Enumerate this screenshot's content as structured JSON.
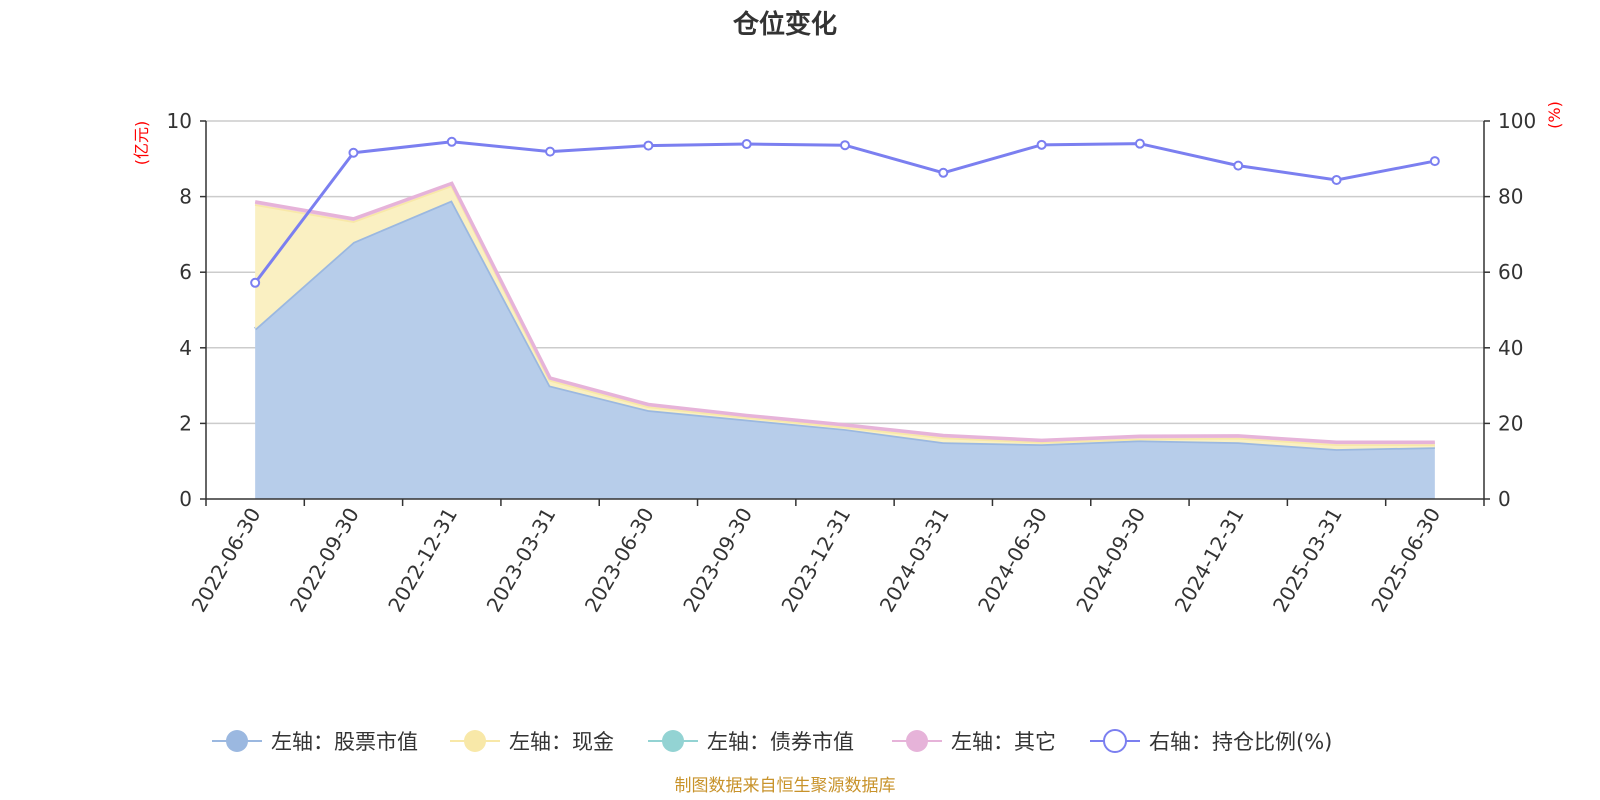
{
  "title": "仓位变化",
  "source": "制图数据来自恒生聚源数据库",
  "chart_data": {
    "type": "area",
    "categories": [
      "2022-06-30",
      "2022-09-30",
      "2022-12-31",
      "2023-03-31",
      "2023-06-30",
      "2023-09-30",
      "2023-12-31",
      "2024-03-31",
      "2024-06-30",
      "2024-09-30",
      "2024-12-31",
      "2025-03-31",
      "2025-06-30"
    ],
    "left_axis": {
      "unit": "(亿元)",
      "ylim": [
        0,
        10
      ],
      "ticks": [
        "0",
        "2",
        "4",
        "6",
        "8",
        "10"
      ]
    },
    "right_axis": {
      "unit": "(%)",
      "ylim": [
        0,
        100
      ],
      "ticks": [
        "0",
        "20",
        "40",
        "60",
        "80",
        "100"
      ]
    },
    "series": [
      {
        "name": "左轴：股票市值",
        "axis": "left",
        "stack": true,
        "color": "#9bb8e0",
        "fill": "#b7cdea",
        "values": [
          4.5,
          6.8,
          7.9,
          3.0,
          2.35,
          2.1,
          1.85,
          1.5,
          1.45,
          1.55,
          1.5,
          1.32,
          1.37
        ]
      },
      {
        "name": "左轴：现金",
        "axis": "left",
        "stack": true,
        "color": "#f8e8a8",
        "fill": "#faf0c2",
        "values": [
          3.3,
          0.55,
          0.4,
          0.15,
          0.1,
          0.07,
          0.06,
          0.13,
          0.06,
          0.05,
          0.12,
          0.13,
          0.08
        ]
      },
      {
        "name": "左轴：债券市值",
        "axis": "left",
        "stack": true,
        "color": "#93d3d3",
        "fill": "#b5e3e3",
        "values": [
          0,
          0,
          0,
          0,
          0,
          0,
          0,
          0,
          0,
          0,
          0,
          0,
          0
        ]
      },
      {
        "name": "左轴：其它",
        "axis": "left",
        "stack": true,
        "color": "#e6b3d9",
        "fill": "#f0cde6",
        "values": [
          0.06,
          0.06,
          0.05,
          0.05,
          0.05,
          0.04,
          0.05,
          0.05,
          0.04,
          0.06,
          0.05,
          0.05,
          0.05
        ]
      },
      {
        "name": "右轴：持仓比例(%)",
        "axis": "right",
        "type": "line",
        "color": "#7b7ff0",
        "values": [
          57.2,
          91.6,
          94.5,
          91.9,
          93.5,
          93.9,
          93.6,
          86.3,
          93.7,
          94.0,
          88.2,
          84.4,
          89.4
        ]
      }
    ],
    "grid": true,
    "legend_position": "bottom"
  }
}
